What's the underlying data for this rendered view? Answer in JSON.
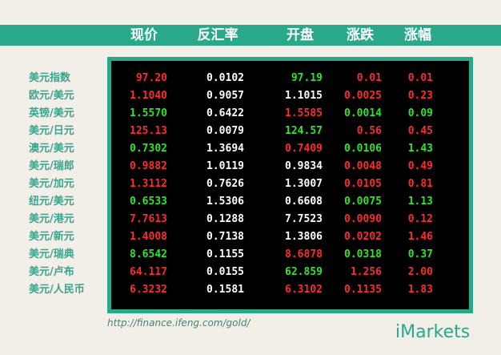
{
  "header": {
    "price": "现价",
    "rate": "反汇率",
    "open": "开盘",
    "change": "涨跌",
    "pct": "涨幅"
  },
  "colors": {
    "header_bg": "#2aa98a",
    "table_bg": "#000000",
    "up": "#ff2a2a",
    "down": "#2ce62c",
    "neutral": "#ffffff",
    "label": "#3aa48f",
    "page_bg": "#f2eee8"
  },
  "rows": [
    {
      "pair": "美元指数",
      "price": "97.20",
      "rate": "0.0102",
      "open": "97.19",
      "change": "0.01",
      "pct": "0.01",
      "price_color": "red",
      "open_color": "green",
      "change_color": "red",
      "pct_color": "red"
    },
    {
      "pair": "欧元/美元",
      "price": "1.1040",
      "rate": "0.9057",
      "open": "1.1015",
      "change": "0.0025",
      "pct": "0.23",
      "price_color": "red",
      "open_color": "white",
      "change_color": "red",
      "pct_color": "red"
    },
    {
      "pair": "英镑/美元",
      "price": "1.5570",
      "rate": "0.6422",
      "open": "1.5585",
      "change": "0.0014",
      "pct": "0.09",
      "price_color": "green",
      "open_color": "red",
      "change_color": "green",
      "pct_color": "green"
    },
    {
      "pair": "美元/日元",
      "price": "125.13",
      "rate": "0.0079",
      "open": "124.57",
      "change": "0.56",
      "pct": "0.45",
      "price_color": "red",
      "open_color": "green",
      "change_color": "red",
      "pct_color": "red"
    },
    {
      "pair": "澳元/美元",
      "price": "0.7302",
      "rate": "1.3694",
      "open": "0.7409",
      "change": "0.0106",
      "pct": "1.43",
      "price_color": "green",
      "open_color": "red",
      "change_color": "green",
      "pct_color": "green"
    },
    {
      "pair": "美元/瑞郎",
      "price": "0.9882",
      "rate": "1.0119",
      "open": "0.9834",
      "change": "0.0048",
      "pct": "0.49",
      "price_color": "red",
      "open_color": "white",
      "change_color": "red",
      "pct_color": "red"
    },
    {
      "pair": "美元/加元",
      "price": "1.3112",
      "rate": "0.7626",
      "open": "1.3007",
      "change": "0.0105",
      "pct": "0.81",
      "price_color": "red",
      "open_color": "white",
      "change_color": "red",
      "pct_color": "red"
    },
    {
      "pair": "纽元/美元",
      "price": "0.6533",
      "rate": "1.5306",
      "open": "0.6608",
      "change": "0.0075",
      "pct": "1.13",
      "price_color": "green",
      "open_color": "white",
      "change_color": "green",
      "pct_color": "green"
    },
    {
      "pair": "美元/港元",
      "price": "7.7613",
      "rate": "0.1288",
      "open": "7.7523",
      "change": "0.0090",
      "pct": "0.12",
      "price_color": "red",
      "open_color": "white",
      "change_color": "red",
      "pct_color": "red"
    },
    {
      "pair": "美元/新元",
      "price": "1.4008",
      "rate": "0.7138",
      "open": "1.3806",
      "change": "0.0202",
      "pct": "1.46",
      "price_color": "red",
      "open_color": "white",
      "change_color": "red",
      "pct_color": "red"
    },
    {
      "pair": "美元/瑞典",
      "price": "8.6542",
      "rate": "0.1155",
      "open": "8.6878",
      "change": "0.0318",
      "pct": "0.37",
      "price_color": "green",
      "open_color": "red",
      "change_color": "green",
      "pct_color": "green"
    },
    {
      "pair": "美元/卢布",
      "price": "64.117",
      "rate": "0.0155",
      "open": "62.859",
      "change": "1.256",
      "pct": "2.00",
      "price_color": "red",
      "open_color": "green",
      "change_color": "red",
      "pct_color": "red"
    },
    {
      "pair": "美元/人民币",
      "price": "6.3232",
      "rate": "0.1581",
      "open": "6.3102",
      "change": "0.1135",
      "pct": "1.83",
      "price_color": "red",
      "open_color": "red",
      "change_color": "red",
      "pct_color": "red"
    }
  ],
  "footer": {
    "url": "http://finance.ifeng.com/gold/",
    "logo_text": "iMarkets"
  }
}
